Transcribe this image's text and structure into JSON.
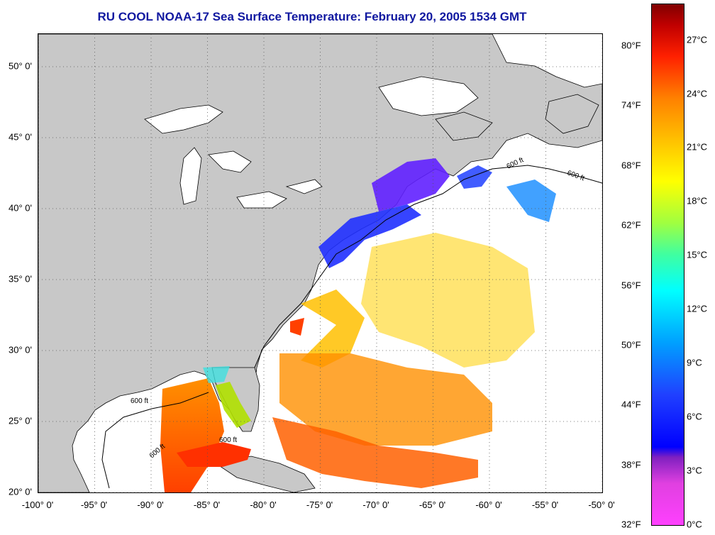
{
  "title": "RU COOL  NOAA-17  Sea Surface Temperature:  February 20, 2005 1534 GMT",
  "map": {
    "lat_labels": [
      {
        "text": "50° 0'",
        "value": 50
      },
      {
        "text": "45° 0'",
        "value": 45
      },
      {
        "text": "40° 0'",
        "value": 40
      },
      {
        "text": "35° 0'",
        "value": 35
      },
      {
        "text": "30° 0'",
        "value": 30
      },
      {
        "text": "25° 0'",
        "value": 25
      },
      {
        "text": "20° 0'",
        "value": 20
      }
    ],
    "lon_labels": [
      {
        "text": "-100° 0'",
        "value": -100
      },
      {
        "text": "-95° 0'",
        "value": -95
      },
      {
        "text": "-90° 0'",
        "value": -90
      },
      {
        "text": "-85° 0'",
        "value": -85
      },
      {
        "text": "-80° 0'",
        "value": -80
      },
      {
        "text": "-75° 0'",
        "value": -75
      },
      {
        "text": "-70° 0'",
        "value": -70
      },
      {
        "text": "-65° 0'",
        "value": -65
      },
      {
        "text": "-60° 0'",
        "value": -60
      },
      {
        "text": "-55° 0'",
        "value": -55
      },
      {
        "text": "-50° 0'",
        "value": -50
      }
    ],
    "lat_range": [
      20,
      52.3
    ],
    "lon_range": [
      -100,
      -50
    ],
    "isobath_label": "600 ft",
    "land_color": "#c8c8c8",
    "ocean_color": "#ffffff"
  },
  "colorbar": {
    "fahrenheit_labels": [
      {
        "text": "80°F",
        "value": 80
      },
      {
        "text": "74°F",
        "value": 74
      },
      {
        "text": "68°F",
        "value": 68
      },
      {
        "text": "62°F",
        "value": 62
      },
      {
        "text": "56°F",
        "value": 56
      },
      {
        "text": "50°F",
        "value": 50
      },
      {
        "text": "44°F",
        "value": 44
      },
      {
        "text": "38°F",
        "value": 38
      },
      {
        "text": "32°F",
        "value": 32
      }
    ],
    "celsius_labels": [
      {
        "text": "27°C",
        "value": 27
      },
      {
        "text": "24°C",
        "value": 24
      },
      {
        "text": "21°C",
        "value": 21
      },
      {
        "text": "18°C",
        "value": 18
      },
      {
        "text": "15°C",
        "value": 15
      },
      {
        "text": "12°C",
        "value": 12
      },
      {
        "text": "9°C",
        "value": 9
      },
      {
        "text": "6°C",
        "value": 6
      },
      {
        "text": "3°C",
        "value": 3
      },
      {
        "text": "0°C",
        "value": 0
      }
    ],
    "c_range": [
      0,
      29
    ]
  }
}
